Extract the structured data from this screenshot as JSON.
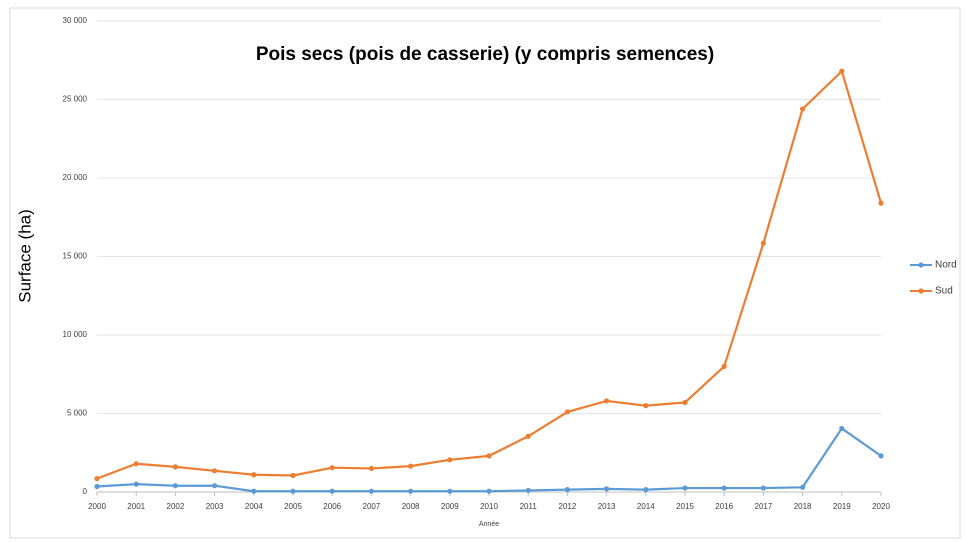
{
  "chart_data": {
    "type": "line",
    "title": "Pois secs (pois de casserie) (y compris semences)",
    "xlabel": "Année",
    "ylabel": "Surface (ha)",
    "categories": [
      "2000",
      "2001",
      "2002",
      "2003",
      "2004",
      "2005",
      "2006",
      "2007",
      "2008",
      "2009",
      "2010",
      "2011",
      "2012",
      "2013",
      "2014",
      "2015",
      "2016",
      "2017",
      "2018",
      "2019",
      "2020"
    ],
    "series": [
      {
        "name": "Nord",
        "color": "#5b9bd5",
        "values": [
          350,
          500,
          400,
          400,
          50,
          50,
          50,
          50,
          50,
          50,
          50,
          100,
          150,
          200,
          150,
          250,
          250,
          250,
          300,
          4050,
          2300
        ]
      },
      {
        "name": "Sud",
        "color": "#ed7d31",
        "values": [
          850,
          1800,
          1600,
          1350,
          1100,
          1050,
          1550,
          1500,
          1650,
          2050,
          2300,
          3550,
          5100,
          5800,
          5500,
          5700,
          8000,
          15850,
          24400,
          26800,
          18400
        ]
      }
    ],
    "ylim": [
      0,
      30000
    ],
    "yticks": [
      0,
      {
        "value": 5000,
        "label": "5 000"
      },
      {
        "value": 10000,
        "label": "10 000"
      },
      {
        "value": 15000,
        "label": "15 000"
      },
      {
        "value": 20000,
        "label": "20 000"
      },
      {
        "value": 25000,
        "label": "25 000"
      },
      {
        "value": 30000,
        "label": "30 000"
      }
    ],
    "grid": true,
    "legend": "right"
  }
}
